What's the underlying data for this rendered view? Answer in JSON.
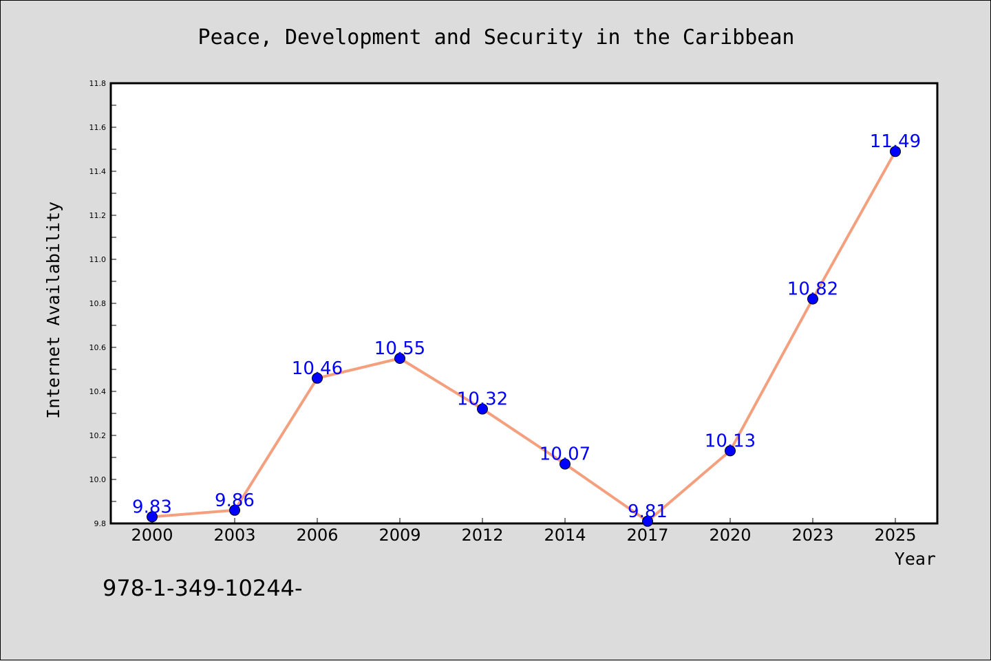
{
  "chart_data": {
    "type": "line",
    "title": "Peace, Development and Security in the Caribbean",
    "xlabel": "Year",
    "ylabel": "Internet Availability",
    "categories": [
      "2000",
      "2003",
      "2006",
      "2009",
      "2012",
      "2014",
      "2017",
      "2020",
      "2023",
      "2025"
    ],
    "series": [
      {
        "values": [
          9.83,
          9.86,
          10.46,
          10.55,
          10.32,
          10.07,
          9.81,
          10.13,
          10.82,
          11.49
        ]
      }
    ],
    "data_labels": [
      "9.83",
      "9.86",
      "10.46",
      "10.55",
      "10.32",
      "10.07",
      "9.81",
      "10.13",
      "10.82",
      "11.49"
    ],
    "ylim": [
      9.8,
      11.8
    ],
    "yticks": [
      "9.8",
      "10.0",
      "10.2",
      "10.4",
      "10.6",
      "10.8",
      "11.0",
      "11.2",
      "11.4",
      "11.6",
      "11.8"
    ],
    "grid": false,
    "line_color": "#f4a07e",
    "marker_color": "#0000ff",
    "label_color": "#0000ff"
  },
  "footnote": "978-1-349-10244-"
}
